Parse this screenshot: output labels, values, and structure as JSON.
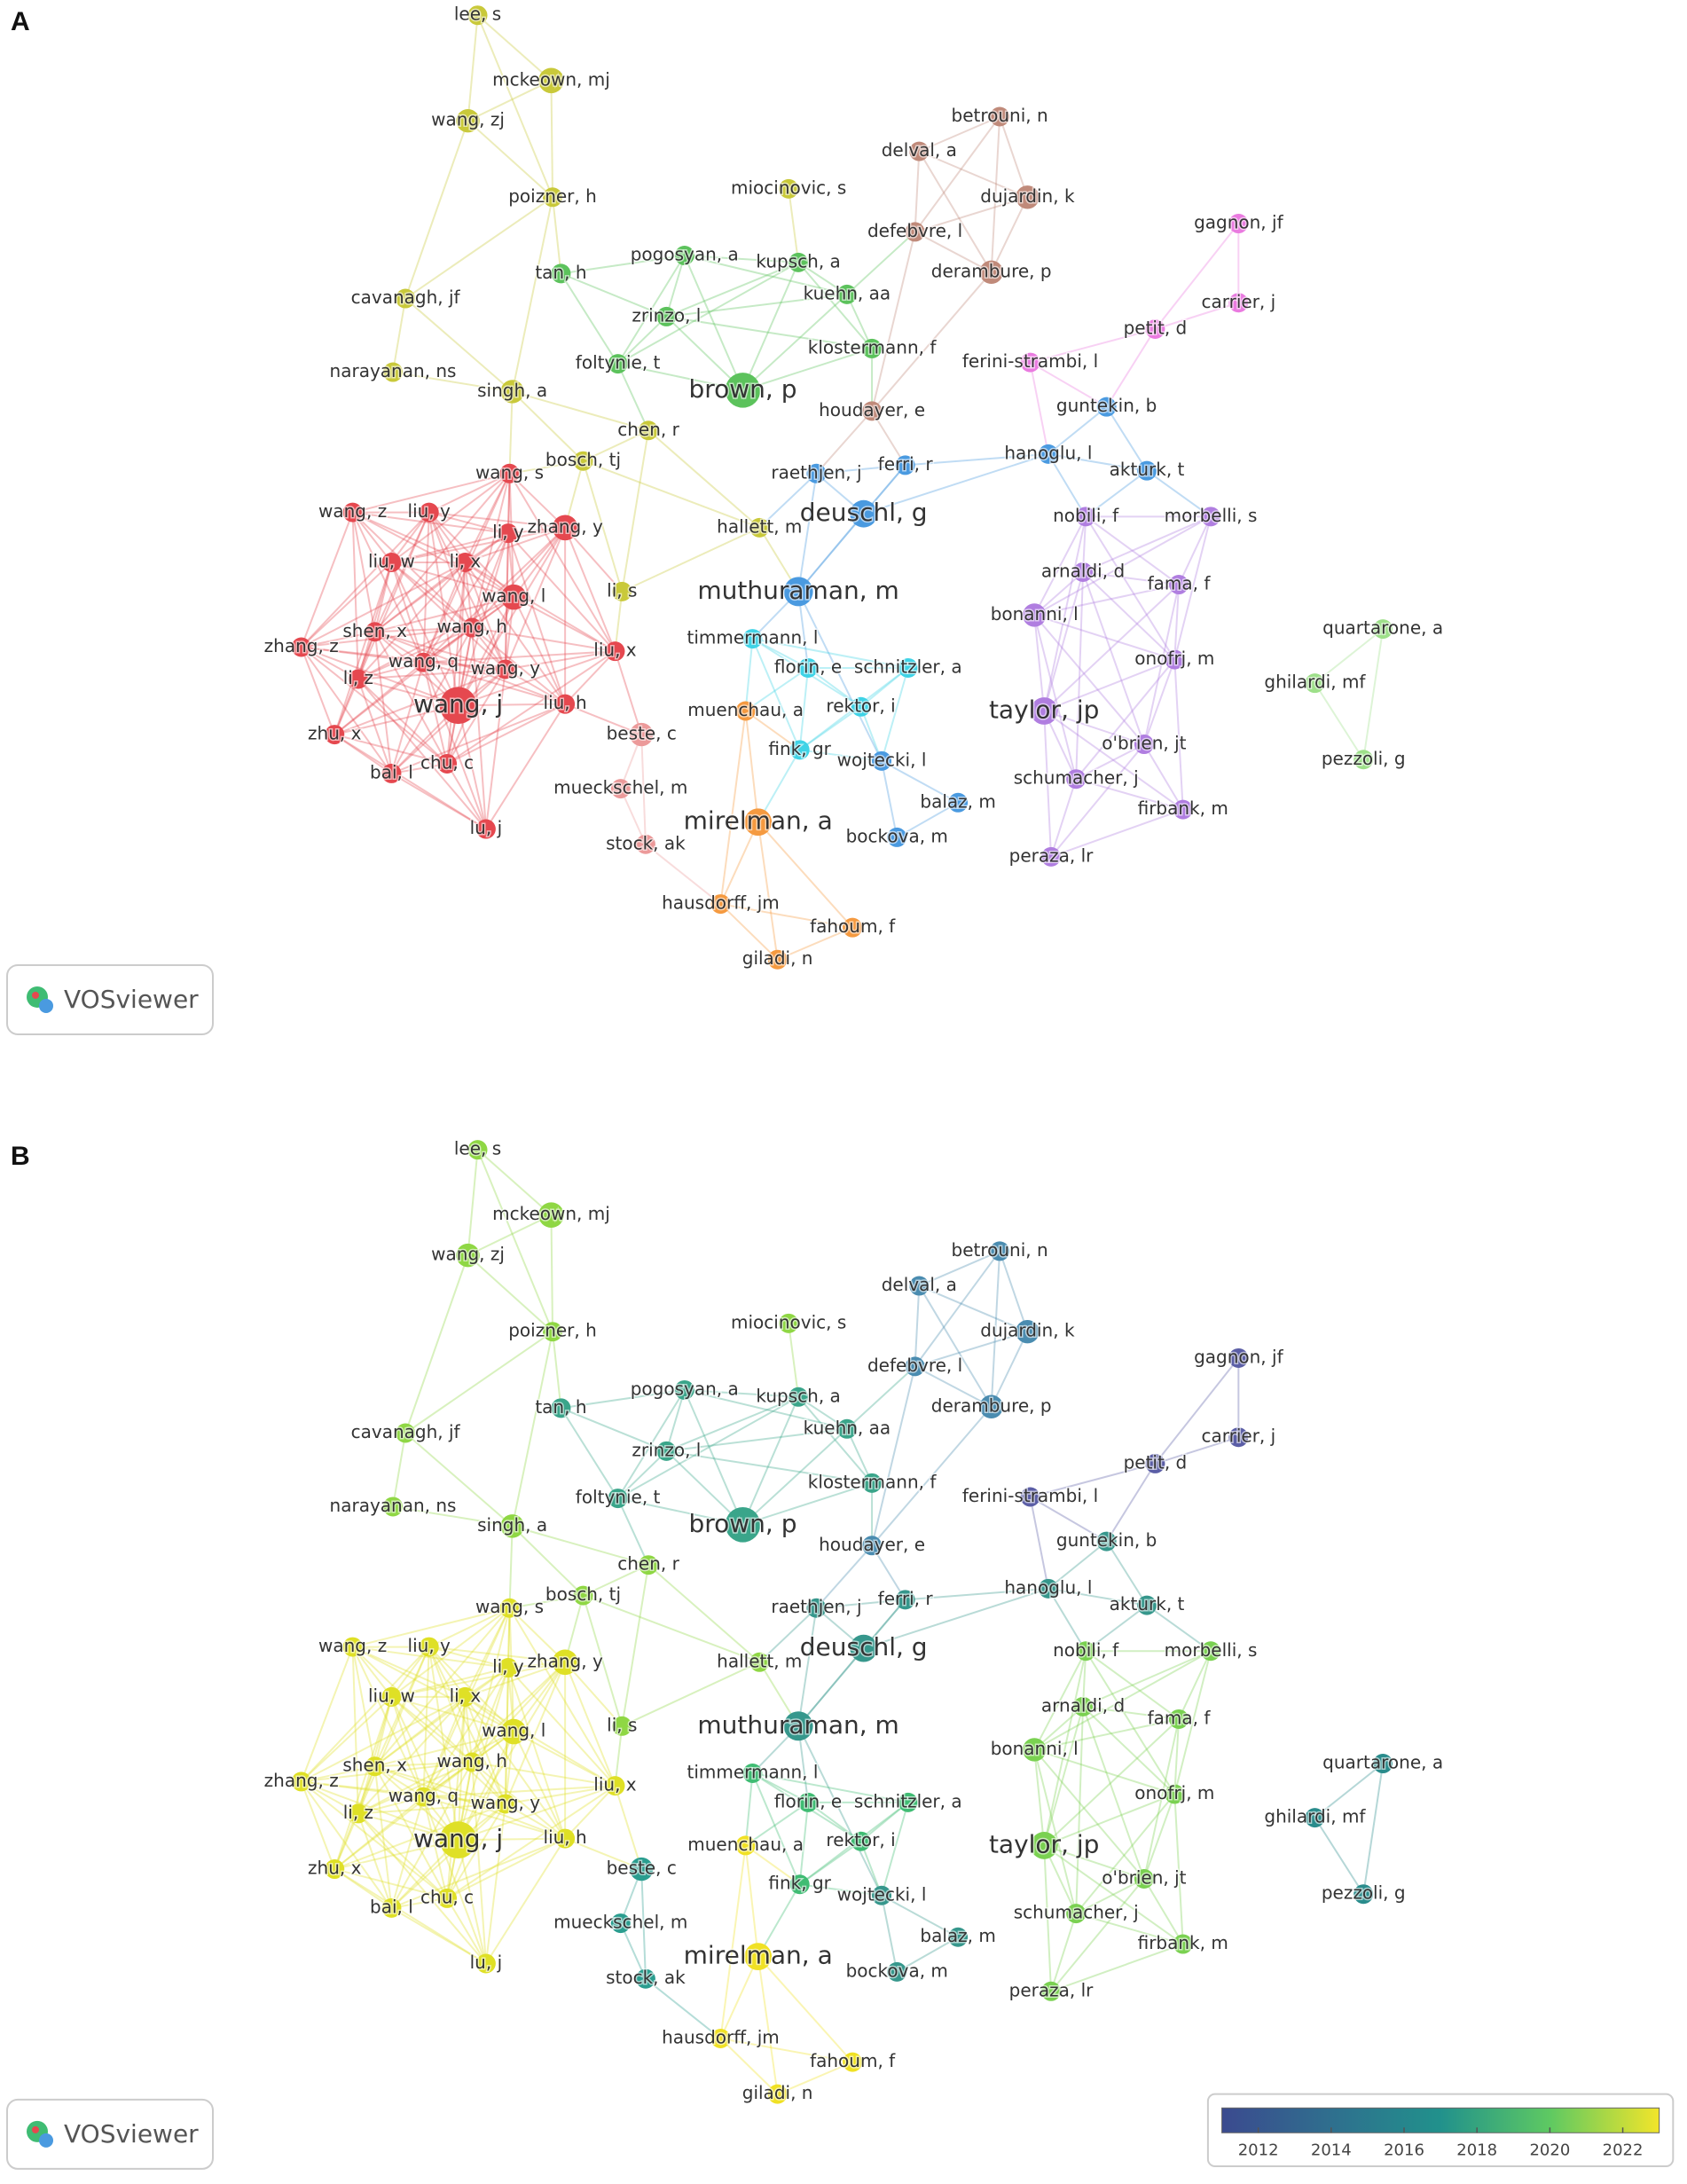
{
  "panels": [
    {
      "label": "A",
      "logo": "VOSviewer",
      "nodes": [
        "lee, s",
        "mckeown, mj",
        "wang, zj",
        "poizner, h",
        "miocinovic, s",
        "tan, h",
        "pogosyan, a",
        "kupsch, a",
        "kuehn, aa",
        "cavanagh, jf",
        "zrinzo, l",
        "klostermann, f",
        "narayanan, ns",
        "foltynie, t",
        "brown, p",
        "singh, a",
        "chen, r",
        "houdayer, e",
        "bosch, tj",
        "wang, s",
        "raethjen, j",
        "ferri, r",
        "hallett, m",
        "deuschl, g",
        "wang, z",
        "liu, y",
        "li, y",
        "zhang, y",
        "liu, w",
        "li, x",
        "wang, l",
        "li, s",
        "muthuraman, m",
        "shen, x",
        "wang, h",
        "zhang, z",
        "timmermann, l",
        "liu, x",
        "wang, q",
        "wang, y",
        "florin, e",
        "schnitzler, a",
        "li, z",
        "wang, j",
        "liu, h",
        "beste, c",
        "muenchau, a",
        "rektor, i",
        "zhu, x",
        "chu, c",
        "bai, l",
        "fink, gr",
        "wojtecki, l",
        "mueckschel, m",
        "balaz, m",
        "mirelman, a",
        "bockova, m",
        "lu, j",
        "stock, ak",
        "hausdorff, jm",
        "fahoum, f",
        "giladi, n",
        "betrouni, n",
        "delval, a",
        "dujardin, k",
        "defebvre, l",
        "derambure, p",
        "gagnon, jf",
        "carrier, j",
        "petit, d",
        "ferini-strambi, l",
        "guntekin, b",
        "hanoglu, l",
        "akturk, t",
        "nobili, f",
        "morbelli, s",
        "arnaldi, d",
        "fama, f",
        "bonanni, l",
        "onofrj, m",
        "quartarone, a",
        "ghilardi, mf",
        "taylor, jp",
        "o'brien, jt",
        "schumacher, j",
        "firbank, m",
        "pezzoli, g",
        "peraza, lr"
      ]
    },
    {
      "label": "B",
      "logo": "VOSviewer",
      "nodes": [
        "lee, s",
        "mckeown, mj",
        "wang, zj",
        "poizner, h",
        "miocinovic, s",
        "tan, h",
        "pogosyan, a",
        "kupsch, a",
        "kuehn, aa",
        "cavanagh, jf",
        "zrinzo, l",
        "klostermann, f",
        "narayanan, ns",
        "foltynie, t",
        "brown, p",
        "singh, a",
        "chen, r",
        "houdayer, e",
        "bosch, tj",
        "wang, s",
        "raethjen, j",
        "ferri, r",
        "hallett, m",
        "deuschl, g",
        "wang, z",
        "liu, y",
        "li, y",
        "zhang, y",
        "liu, w",
        "li, x",
        "wang, l",
        "li, s",
        "muthuraman, m",
        "shen, x",
        "wang, h",
        "zhang, z",
        "timmermann, l",
        "liu, x",
        "wang, q",
        "wang, y",
        "florin, e",
        "schnitzler, a",
        "li, z",
        "wang, j",
        "liu, h",
        "beste, c",
        "muenchau, a",
        "rektor, i",
        "zhu, x",
        "chu, c",
        "bai, l",
        "fink, gr",
        "wojtecki, l",
        "mueckschel, m",
        "balaz, m",
        "mirelman, a",
        "bockova, m",
        "lu, j",
        "stock, ak",
        "hausdorff, jm",
        "fahoum, f",
        "giladi, n",
        "betrouni, n",
        "delval, a",
        "dujardin, k",
        "defebvre, l",
        "derambure, p",
        "gagnon, jf",
        "carrier, j",
        "petit, d",
        "ferini-strambi, l",
        "guntekin, b",
        "hanoglu, l",
        "akturk, t",
        "nobili, f",
        "morbelli, s",
        "arnaldi, d",
        "fama, f",
        "bonanni, l",
        "onofrj, m",
        "quartarone, a",
        "ghilardi, mf",
        "taylor, jp",
        "o'brien, jt",
        "schumacher, j",
        "firbank, m",
        "pezzoli, g",
        "peraza, lr"
      ],
      "colorbar": {
        "ticks": [
          2012,
          2014,
          2016,
          2018,
          2020,
          2022
        ]
      }
    }
  ]
}
